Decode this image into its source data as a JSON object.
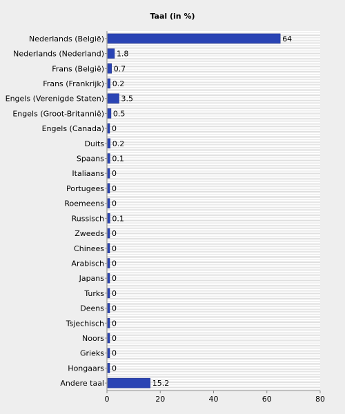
{
  "chart_data": {
    "type": "bar",
    "orientation": "horizontal",
    "title": "Taal (in %)",
    "xlabel": "",
    "ylabel": "",
    "categories": [
      "Nederlands (België)",
      "Nederlands (Nederland)",
      "Frans (België)",
      "Frans (Frankrijk)",
      "Engels (Verenigde Staten)",
      "Engels (Groot-Britannië)",
      "Engels (Canada)",
      "Duits",
      "Spaans",
      "Italiaans",
      "Portugees",
      "Roemeens",
      "Russisch",
      "Zweeds",
      "Chinees",
      "Arabisch",
      "Japans",
      "Turks",
      "Deens",
      "Tsjechisch",
      "Noors",
      "Grieks",
      "Hongaars",
      "Andere taal"
    ],
    "values": [
      64,
      1.8,
      0.7,
      0.2,
      3.5,
      0.5,
      0,
      0.2,
      0.1,
      0,
      0,
      0,
      0.1,
      0,
      0,
      0,
      0,
      0,
      0,
      0,
      0,
      0,
      0,
      15.2
    ],
    "value_labels": [
      "64",
      "1.8",
      "0.7",
      "0.2",
      "3.5",
      "0.5",
      "0",
      "0.2",
      "0.1",
      "0",
      "0",
      "0",
      "0.1",
      "0",
      "0",
      "0",
      "0",
      "0",
      "0",
      "0",
      "0",
      "0",
      "0",
      "15.2"
    ],
    "xlim": [
      0,
      80
    ],
    "xticks": [
      "0",
      "20",
      "40",
      "60",
      "80"
    ],
    "grid": true,
    "bar_color": "#2a44b4",
    "plot_background": "#ffffff",
    "gridline_color": "#cccccc"
  }
}
